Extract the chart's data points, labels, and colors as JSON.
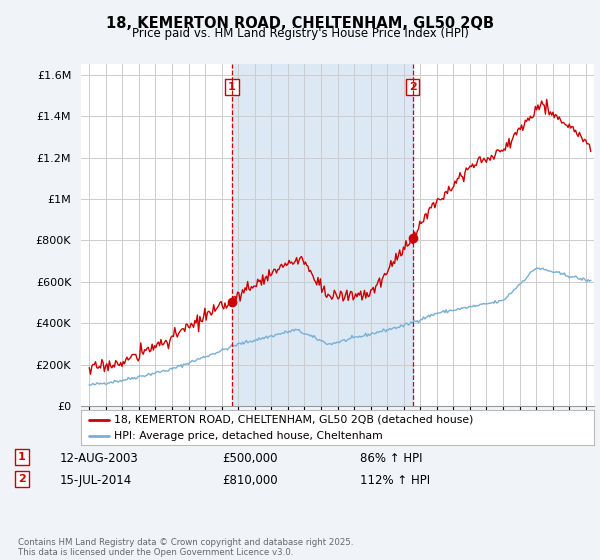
{
  "title": "18, KEMERTON ROAD, CHELTENHAM, GL50 2QB",
  "subtitle": "Price paid vs. HM Land Registry's House Price Index (HPI)",
  "red_label": "18, KEMERTON ROAD, CHELTENHAM, GL50 2QB (detached house)",
  "blue_label": "HPI: Average price, detached house, Cheltenham",
  "annotation1": {
    "num": "1",
    "date": "12-AUG-2003",
    "price": "£500,000",
    "pct": "86% ↑ HPI"
  },
  "annotation2": {
    "num": "2",
    "date": "15-JUL-2014",
    "price": "£810,000",
    "pct": "112% ↑ HPI"
  },
  "footer": "Contains HM Land Registry data © Crown copyright and database right 2025.\nThis data is licensed under the Open Government Licence v3.0.",
  "vline1_x": 2003.62,
  "vline2_x": 2014.54,
  "marker1_red_y": 500000,
  "marker2_red_y": 810000,
  "ylim": [
    0,
    1650000
  ],
  "xlim": [
    1994.5,
    2025.5
  ],
  "bg_color": "#f0f4f8",
  "plot_bg_color": "#ffffff",
  "red_color": "#cc0000",
  "blue_color": "#7aafd4",
  "vline_color": "#cc0000",
  "grid_color": "#cccccc",
  "shade_color": "#dce9f5"
}
